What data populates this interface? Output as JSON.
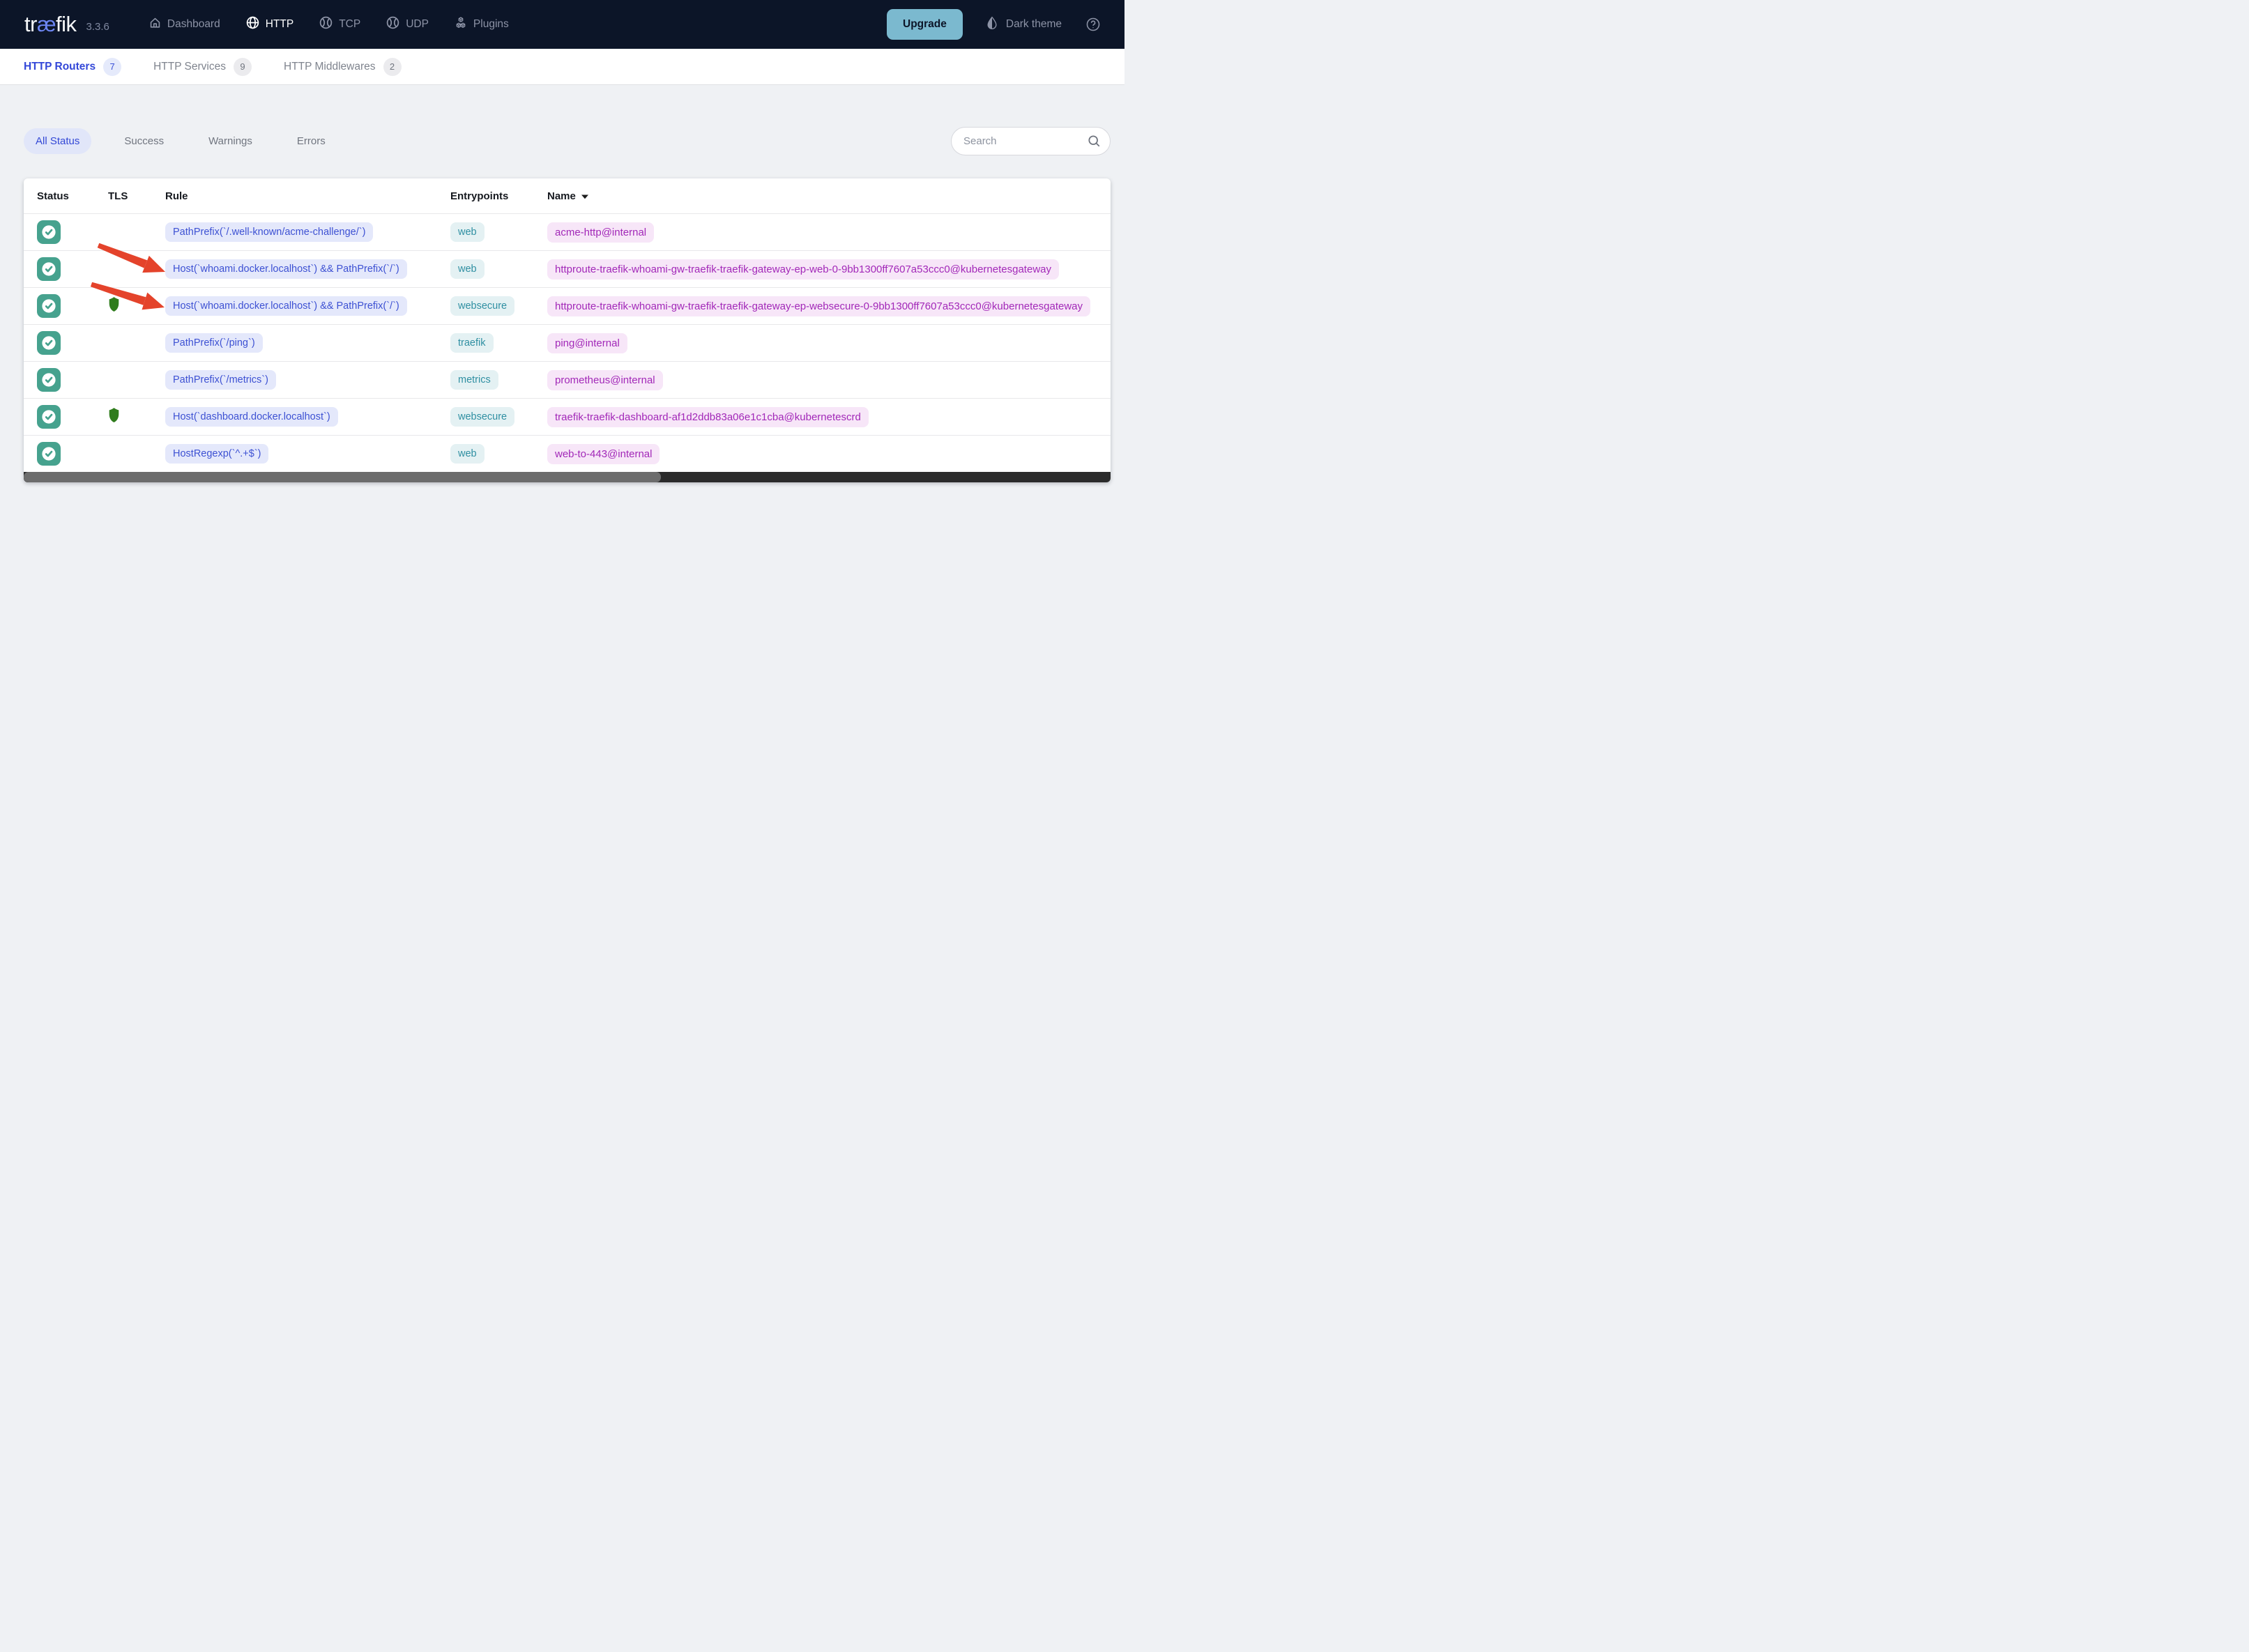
{
  "navbar": {
    "logo": {
      "pre": "tr",
      "ligature": "æ",
      "post": "fik"
    },
    "version": "3.3.6",
    "items": [
      {
        "label": "Dashboard",
        "icon": "home-icon",
        "active": false
      },
      {
        "label": "HTTP",
        "icon": "globe-icon",
        "active": true
      },
      {
        "label": "TCP",
        "icon": "ball-icon",
        "active": false
      },
      {
        "label": "UDP",
        "icon": "ball-icon",
        "active": false
      },
      {
        "label": "Plugins",
        "icon": "cubes-icon",
        "active": false
      }
    ],
    "upgrade_label": "Upgrade",
    "theme_toggle_label": "Dark theme"
  },
  "subnav": {
    "items": [
      {
        "label": "HTTP Routers",
        "count": "7",
        "active": true
      },
      {
        "label": "HTTP Services",
        "count": "9",
        "active": false
      },
      {
        "label": "HTTP Middlewares",
        "count": "2",
        "active": false
      }
    ]
  },
  "filters": {
    "items": [
      {
        "label": "All Status",
        "active": true
      },
      {
        "label": "Success",
        "active": false
      },
      {
        "label": "Warnings",
        "active": false
      },
      {
        "label": "Errors",
        "active": false
      }
    ],
    "search_placeholder": "Search"
  },
  "table": {
    "columns": [
      "Status",
      "TLS",
      "Rule",
      "Entrypoints",
      "Name"
    ],
    "sorted_column": "Name",
    "rows": [
      {
        "status": "success",
        "tls": false,
        "rule": "PathPrefix(`/.well-known/acme-challenge/`)",
        "entrypoints": "web",
        "name": "acme-http@internal"
      },
      {
        "status": "success",
        "tls": false,
        "rule": "Host(`whoami.docker.localhost`) && PathPrefix(`/`)",
        "entrypoints": "web",
        "name": "httproute-traefik-whoami-gw-traefik-traefik-gateway-ep-web-0-9bb1300ff7607a53ccc0@kubernetesgateway"
      },
      {
        "status": "success",
        "tls": true,
        "rule": "Host(`whoami.docker.localhost`) && PathPrefix(`/`)",
        "entrypoints": "websecure",
        "name": "httproute-traefik-whoami-gw-traefik-traefik-gateway-ep-websecure-0-9bb1300ff7607a53ccc0@kubernetesgateway"
      },
      {
        "status": "success",
        "tls": false,
        "rule": "PathPrefix(`/ping`)",
        "entrypoints": "traefik",
        "name": "ping@internal"
      },
      {
        "status": "success",
        "tls": false,
        "rule": "PathPrefix(`/metrics`)",
        "entrypoints": "metrics",
        "name": "prometheus@internal"
      },
      {
        "status": "success",
        "tls": true,
        "rule": "Host(`dashboard.docker.localhost`)",
        "entrypoints": "websecure",
        "name": "traefik-traefik-dashboard-af1d2ddb83a06e1c1cba@kubernetescrd"
      },
      {
        "status": "success",
        "tls": false,
        "rule": "HostRegexp(`^.+$`)",
        "entrypoints": "web",
        "name": "web-to-443@internal"
      }
    ]
  },
  "annotations": {
    "arrow_color": "#e4432b",
    "arrows": [
      {
        "points_at": "row-2-rule"
      },
      {
        "points_at": "row-3-rule"
      }
    ]
  },
  "colors": {
    "navbar_bg": "#0c1528",
    "accent_blue": "#3347d8",
    "upgrade_bg": "#7bb9cf",
    "status_teal": "#46a28e",
    "tls_shield_green": "#2f7c1c",
    "rule_text": "#3d51d3",
    "rule_bg": "#e4e8fb",
    "entrypoint_text": "#2f8fa2",
    "entrypoint_bg": "#e4f1f3",
    "name_text": "#a228b8",
    "name_bg": "#f7e6f8",
    "page_bg": "#eff1f4",
    "scrollbar_track": "#2b2b2b",
    "scrollbar_thumb": "#6c6c6c"
  }
}
